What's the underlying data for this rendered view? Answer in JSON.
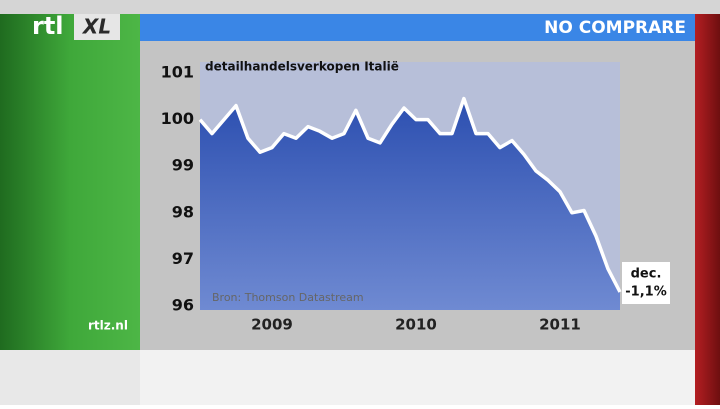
{
  "logo": [
    "rtl",
    "XL"
  ],
  "banner": "NO COMPRARE",
  "site": "rtlz.nl",
  "chart_data": {
    "type": "line",
    "title": "detailhandelsverkopen Italië",
    "source": "Bron: Thomson Datastream",
    "annotation": [
      "dec.",
      "-1,1%"
    ],
    "x": [
      2009,
      2009.083,
      2009.167,
      2009.25,
      2009.333,
      2009.417,
      2009.5,
      2009.583,
      2009.667,
      2009.75,
      2009.833,
      2009.917,
      2010,
      2010.083,
      2010.167,
      2010.25,
      2010.333,
      2010.417,
      2010.5,
      2010.583,
      2010.667,
      2010.75,
      2010.833,
      2010.917,
      2011,
      2011.083,
      2011.167,
      2011.25,
      2011.333,
      2011.417,
      2011.5,
      2011.583,
      2011.667,
      2011.75,
      2011.833,
      2011.917
    ],
    "series": [
      {
        "name": "detailhandelsverkopen",
        "color": "#ffffff",
        "values": [
          100.0,
          99.7,
          100.0,
          100.3,
          99.6,
          99.3,
          99.4,
          99.7,
          99.6,
          99.85,
          99.75,
          99.6,
          99.7,
          100.2,
          99.6,
          99.5,
          99.9,
          100.25,
          100.0,
          100.0,
          99.7,
          99.7,
          100.45,
          99.7,
          99.7,
          99.4,
          99.55,
          99.25,
          98.9,
          98.7,
          98.45,
          98.0,
          98.05,
          97.5,
          96.8,
          96.3
        ]
      }
    ],
    "xlim": [
      2009,
      2011.917
    ],
    "xticks": [
      {
        "value": 2009.5,
        "label": "2009"
      },
      {
        "value": 2010.5,
        "label": "2010"
      },
      {
        "value": 2011.5,
        "label": "2011"
      }
    ],
    "ylim": [
      96,
      101
    ],
    "yticks": [
      96,
      97,
      98,
      99,
      100,
      101
    ],
    "grid": false
  }
}
